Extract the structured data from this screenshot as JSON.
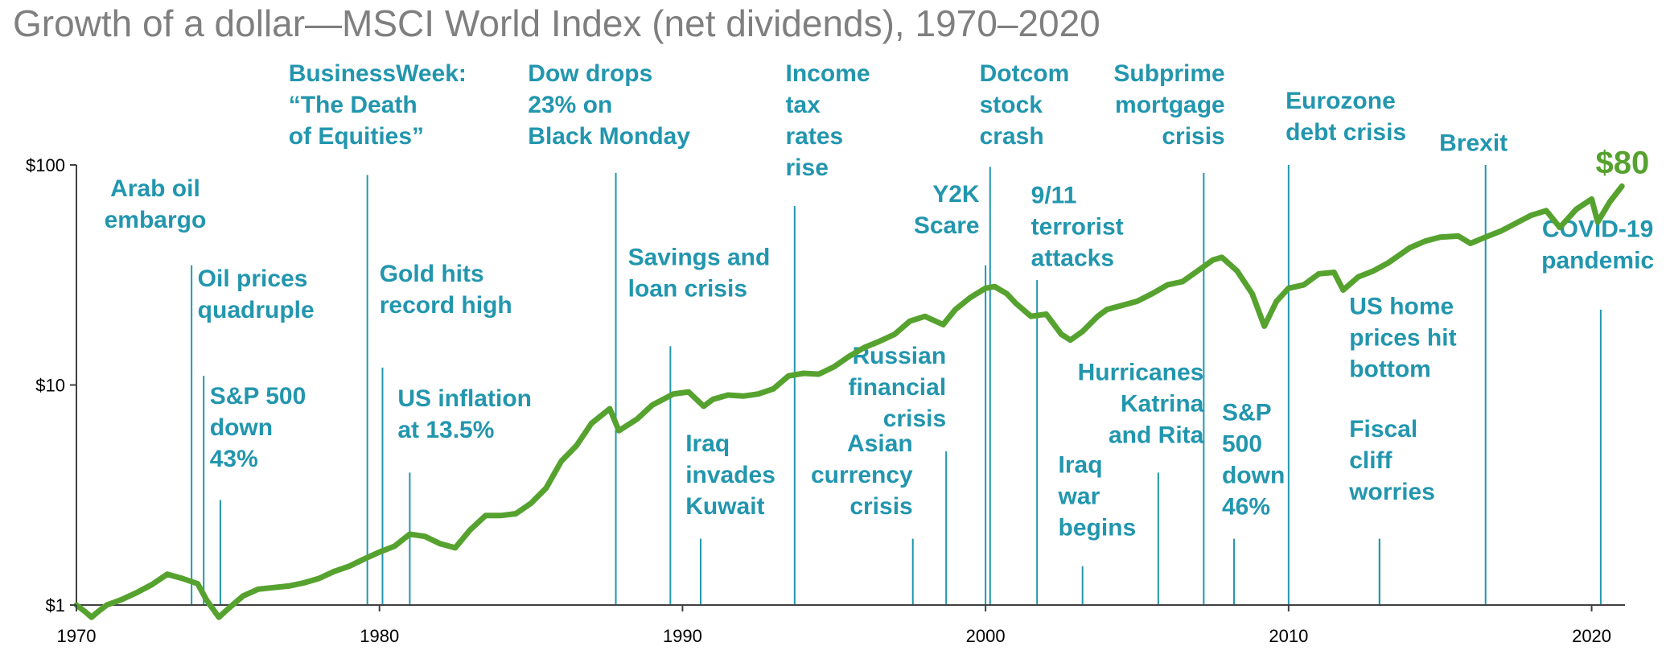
{
  "chart_data": {
    "type": "line",
    "title": "Growth of a dollar—MSCI World Index (net dividends), 1970–2020",
    "xlabel": "",
    "ylabel": "",
    "x_range": [
      1970,
      2021.1
    ],
    "y_scale": "log",
    "ylim": [
      1,
      100
    ],
    "x_ticks": [
      "1970",
      "1980",
      "1990",
      "2000",
      "2010",
      "2020"
    ],
    "y_ticks": [
      "$1",
      "$10",
      "$100"
    ],
    "grid": false,
    "legend": "none",
    "line_color": "#56a22f",
    "annotation_color": "#2296ae",
    "final_value_label": "$80",
    "series": [
      {
        "x": [
          1970.0,
          1970.3,
          1970.5,
          1970.7,
          1971.0,
          1971.5,
          1972.0,
          1972.5,
          1973.0,
          1973.5,
          1974.0,
          1974.3,
          1974.7,
          1975.0,
          1975.5,
          1976.0,
          1976.5,
          1977.0,
          1977.5,
          1978.0,
          1978.5,
          1979.0,
          1979.5,
          1980.0,
          1980.5,
          1981.0,
          1981.5,
          1982.0,
          1982.5,
          1983.0,
          1983.5,
          1984.0,
          1984.5,
          1985.0,
          1985.5,
          1986.0,
          1986.5,
          1987.0,
          1987.6,
          1987.9,
          1988.5,
          1989.0,
          1989.7,
          1990.2,
          1990.7,
          1991.0,
          1991.5,
          1992.0,
          1992.5,
          1993.0,
          1993.5,
          1994.0,
          1994.5,
          1995.0,
          1995.5,
          1996.0,
          1996.5,
          1997.0,
          1997.5,
          1998.0,
          1998.6,
          1999.0,
          1999.5,
          2000.0,
          2000.3,
          2000.7,
          2001.0,
          2001.5,
          2002.0,
          2002.5,
          2002.8,
          2003.2,
          2003.7,
          2004.0,
          2004.5,
          2005.0,
          2005.5,
          2006.0,
          2006.5,
          2007.0,
          2007.5,
          2007.8,
          2008.3,
          2008.8,
          2009.2,
          2009.6,
          2010.0,
          2010.5,
          2011.0,
          2011.5,
          2011.8,
          2012.3,
          2012.8,
          2013.3,
          2014.0,
          2014.5,
          2015.0,
          2015.6,
          2016.0,
          2016.5,
          2017.0,
          2018.0,
          2018.5,
          2018.95,
          2019.5,
          2020.0,
          2020.2,
          2020.6,
          2021.0
        ],
        "values": [
          1.0,
          0.93,
          0.88,
          0.93,
          1.0,
          1.06,
          1.14,
          1.24,
          1.38,
          1.32,
          1.25,
          1.05,
          0.88,
          0.96,
          1.1,
          1.18,
          1.2,
          1.22,
          1.26,
          1.32,
          1.42,
          1.5,
          1.62,
          1.74,
          1.85,
          2.1,
          2.05,
          1.9,
          1.82,
          2.2,
          2.55,
          2.55,
          2.6,
          2.9,
          3.4,
          4.5,
          5.3,
          6.7,
          7.8,
          6.2,
          7.0,
          8.1,
          9.1,
          9.3,
          8.0,
          8.6,
          9.0,
          8.9,
          9.1,
          9.6,
          11.0,
          11.3,
          11.2,
          12.1,
          13.5,
          14.8,
          15.8,
          17.0,
          19.5,
          20.5,
          18.8,
          22.0,
          25.0,
          27.5,
          28.0,
          26.0,
          23.5,
          20.5,
          21.0,
          17.0,
          16.0,
          17.5,
          20.5,
          22.0,
          23.0,
          24.0,
          26.0,
          28.5,
          29.5,
          33.0,
          37.0,
          38.0,
          33.0,
          26.0,
          18.5,
          24.0,
          27.5,
          28.5,
          32.0,
          32.5,
          27.0,
          31.0,
          33.0,
          36.0,
          42.0,
          45.0,
          47.0,
          47.5,
          44.0,
          47.0,
          50.0,
          59.0,
          62.0,
          52.0,
          63.0,
          70.0,
          55.0,
          68.0,
          80.0
        ]
      }
    ],
    "annotations": [
      {
        "year": 1973.8,
        "top": 35.0,
        "lines": [
          "Arab oil",
          "embargo"
        ],
        "anchor": "middle",
        "text_year": 1972.6,
        "text_value": 72
      },
      {
        "year": 1974.2,
        "top": 11.0,
        "lines": [
          "Oil prices",
          "quadruple"
        ],
        "anchor": "start",
        "text_year": 1974.0,
        "text_value": 28
      },
      {
        "year": 1974.75,
        "top": 3.0,
        "lines": [
          "S&P 500",
          "down",
          "43%"
        ],
        "anchor": "start",
        "text_year": 1974.4,
        "text_value": 8.2
      },
      {
        "year": 1979.6,
        "top": 90.0,
        "lines": [
          "BusinessWeek:",
          "“The Death",
          "of Equities”"
        ],
        "anchor": "start",
        "text_year": 1977.0,
        "text_value": 240
      },
      {
        "year": 1980.1,
        "top": 12.0,
        "lines": [
          "Gold hits",
          "record high"
        ],
        "anchor": "start",
        "text_year": 1980.0,
        "text_value": 29.5
      },
      {
        "year": 1981.0,
        "top": 4.0,
        "lines": [
          "US inflation",
          "at 13.5%"
        ],
        "anchor": "start",
        "text_year": 1980.6,
        "text_value": 8.0
      },
      {
        "year": 1987.8,
        "top": 92.0,
        "lines": [
          "Dow drops",
          "23% on",
          "Black Monday"
        ],
        "anchor": "start",
        "text_year": 1984.9,
        "text_value": 240
      },
      {
        "year": 1989.6,
        "top": 15.0,
        "lines": [
          "Savings and",
          "loan crisis"
        ],
        "anchor": "start",
        "text_year": 1988.2,
        "text_value": 35
      },
      {
        "year": 1990.6,
        "top": 2.0,
        "lines": [
          "Iraq",
          "invades",
          "Kuwait"
        ],
        "anchor": "start",
        "text_year": 1990.1,
        "text_value": 5.0
      },
      {
        "year": 1993.7,
        "top": 65.0,
        "lines": [
          "Income",
          "tax",
          "rates",
          "rise"
        ],
        "anchor": "start",
        "text_year": 1993.4,
        "text_value": 240
      },
      {
        "year": 1997.6,
        "top": 2.0,
        "lines": [
          "Asian",
          "currency",
          "crisis"
        ],
        "anchor": "end",
        "text_year": 1997.6,
        "text_value": 5.0
      },
      {
        "year": 1998.7,
        "top": 5.0,
        "lines": [
          "Russian",
          "financial",
          "crisis"
        ],
        "anchor": "end",
        "text_year": 1998.7,
        "text_value": 12.5
      },
      {
        "year": 2000.0,
        "top": 35.0,
        "lines": [
          "Y2K",
          "Scare"
        ],
        "anchor": "end",
        "text_year": 1999.8,
        "text_value": 68
      },
      {
        "year": 2000.15,
        "top": 98.0,
        "lines": [
          "Dotcom",
          "stock",
          "crash"
        ],
        "anchor": "start",
        "text_year": 1999.8,
        "text_value": 240
      },
      {
        "year": 2001.7,
        "top": 30.0,
        "lines": [
          "9/11",
          "terrorist",
          "attacks"
        ],
        "anchor": "start",
        "text_year": 2001.5,
        "text_value": 67
      },
      {
        "year": 2003.2,
        "top": 1.5,
        "lines": [
          "Iraq",
          "war",
          "begins"
        ],
        "anchor": "start",
        "text_year": 2002.4,
        "text_value": 4.0
      },
      {
        "year": 2005.7,
        "top": 4.0,
        "lines": [
          "Hurricanes",
          "Katrina",
          "and Rita"
        ],
        "anchor": "end",
        "text_year": 2007.2,
        "text_value": 10.5
      },
      {
        "year": 2007.2,
        "top": 92.0,
        "lines": [
          "Subprime",
          "mortgage",
          "crisis"
        ],
        "anchor": "end",
        "text_year": 2007.9,
        "text_value": 240
      },
      {
        "year": 2008.2,
        "top": 2.0,
        "lines": [
          "S&P",
          "500",
          "down",
          "46%"
        ],
        "anchor": "start",
        "text_year": 2007.8,
        "text_value": 6.9
      },
      {
        "year": 2010.0,
        "top": 100.0,
        "lines": [
          "Eurozone",
          "debt crisis"
        ],
        "anchor": "start",
        "text_year": 2009.9,
        "text_value": 180
      },
      {
        "year": 2013.0,
        "top": 2.0,
        "lines": [
          "US home",
          "prices hit",
          "bottom"
        ],
        "anchor": "start",
        "text_year": 2012.0,
        "text_value": 21
      },
      {
        "year": 2013.0,
        "top": 2.0,
        "lines": [
          "Fiscal",
          "cliff",
          "worries"
        ],
        "anchor": "start",
        "text_year": 2012.0,
        "text_value": 5.8
      },
      {
        "year": 2016.5,
        "top": 100.0,
        "lines": [
          "Brexit"
        ],
        "anchor": "middle",
        "text_year": 2016.1,
        "text_value": 116
      },
      {
        "year": 2020.3,
        "top": 22.0,
        "lines": [
          "COVID-19",
          "pandemic"
        ],
        "anchor": "middle",
        "text_year": 2020.2,
        "text_value": 47
      }
    ]
  }
}
